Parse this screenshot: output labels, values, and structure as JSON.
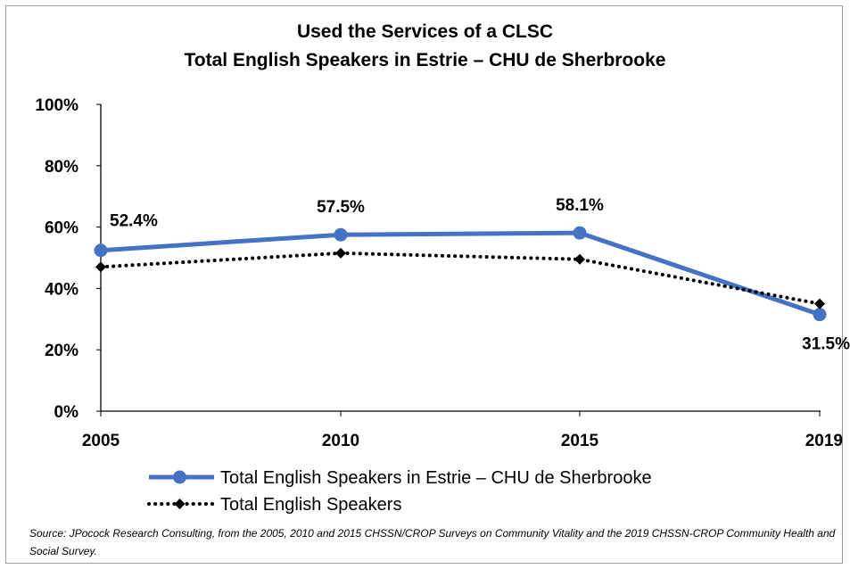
{
  "chart_data": {
    "type": "line",
    "title": "Used the Services of a CLSC",
    "subtitle": "Total English Speakers in Estrie – CHU de Sherbrooke",
    "categories": [
      "2005",
      "2010",
      "2015",
      "2019"
    ],
    "ylim": [
      0,
      100
    ],
    "y_ticks": [
      "0%",
      "20%",
      "40%",
      "60%",
      "80%",
      "100%"
    ],
    "y_tick_values": [
      0,
      20,
      40,
      60,
      80,
      100
    ],
    "grid": false,
    "legend_position": "bottom",
    "series": [
      {
        "name": "Total English Speakers in Estrie – CHU de Sherbrooke",
        "values": [
          52.4,
          57.5,
          58.1,
          31.5
        ],
        "labels": [
          "52.4%",
          "57.5%",
          "58.1%",
          "31.5%"
        ],
        "color": "#4472c4",
        "style": "solid",
        "marker": "circle"
      },
      {
        "name": "Total English Speakers",
        "values": [
          47,
          51.5,
          49.5,
          35
        ],
        "color": "#000000",
        "style": "dotted",
        "marker": "diamond"
      }
    ]
  },
  "source": "Source: JPocock Research Consulting, from the 2005, 2010  and 2015  CHSSN/CROP Surveys on Community Vitality and the 2019  CHSSN-CROP Community Health and Social Survey."
}
